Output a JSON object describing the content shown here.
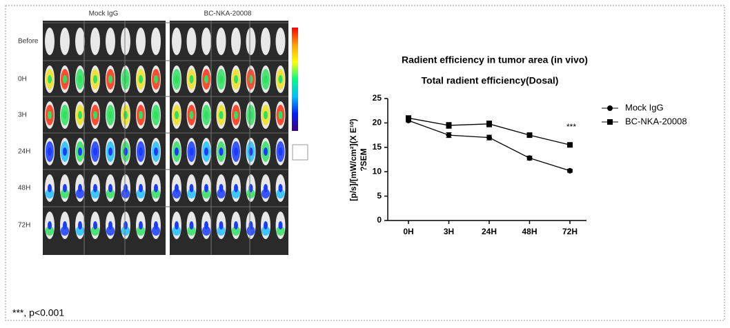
{
  "image_panel": {
    "columns": [
      "Mock IgG",
      "BC-NKA-20008"
    ],
    "rows": [
      "Before",
      "0H",
      "3H",
      "24H",
      "48H",
      "72H"
    ]
  },
  "footnote": "***,  p<0.001",
  "chart_data": {
    "type": "line",
    "title": "Radient efficiency in tumor area (in vivo)",
    "subtitle": "Total radient efficiency(Dosal)",
    "y_label": "[p/s]/[mW/cm²](X E¹⁰)",
    "y_label_2": "?SEM",
    "annotation": "***",
    "categories": [
      "0H",
      "3H",
      "24H",
      "48H",
      "72H"
    ],
    "series": [
      {
        "name": "Mock IgG",
        "color": "#000000",
        "marker": "circle",
        "values": [
          20.5,
          17.5,
          17,
          12.8,
          10.2
        ],
        "errors": [
          0.3,
          0.5,
          0.5,
          0.4,
          0.3
        ]
      },
      {
        "name": "BC-NKA-20008",
        "color": "#000000",
        "marker": "square",
        "values": [
          21,
          19.5,
          19.8,
          17.5,
          15.5
        ],
        "errors": [
          0.4,
          0.6,
          0.6,
          0.3,
          0.3
        ]
      }
    ],
    "ylim": [
      0,
      25
    ],
    "yticks": [
      0,
      5,
      10,
      15,
      20,
      25
    ],
    "grid": false,
    "legend": "right"
  }
}
